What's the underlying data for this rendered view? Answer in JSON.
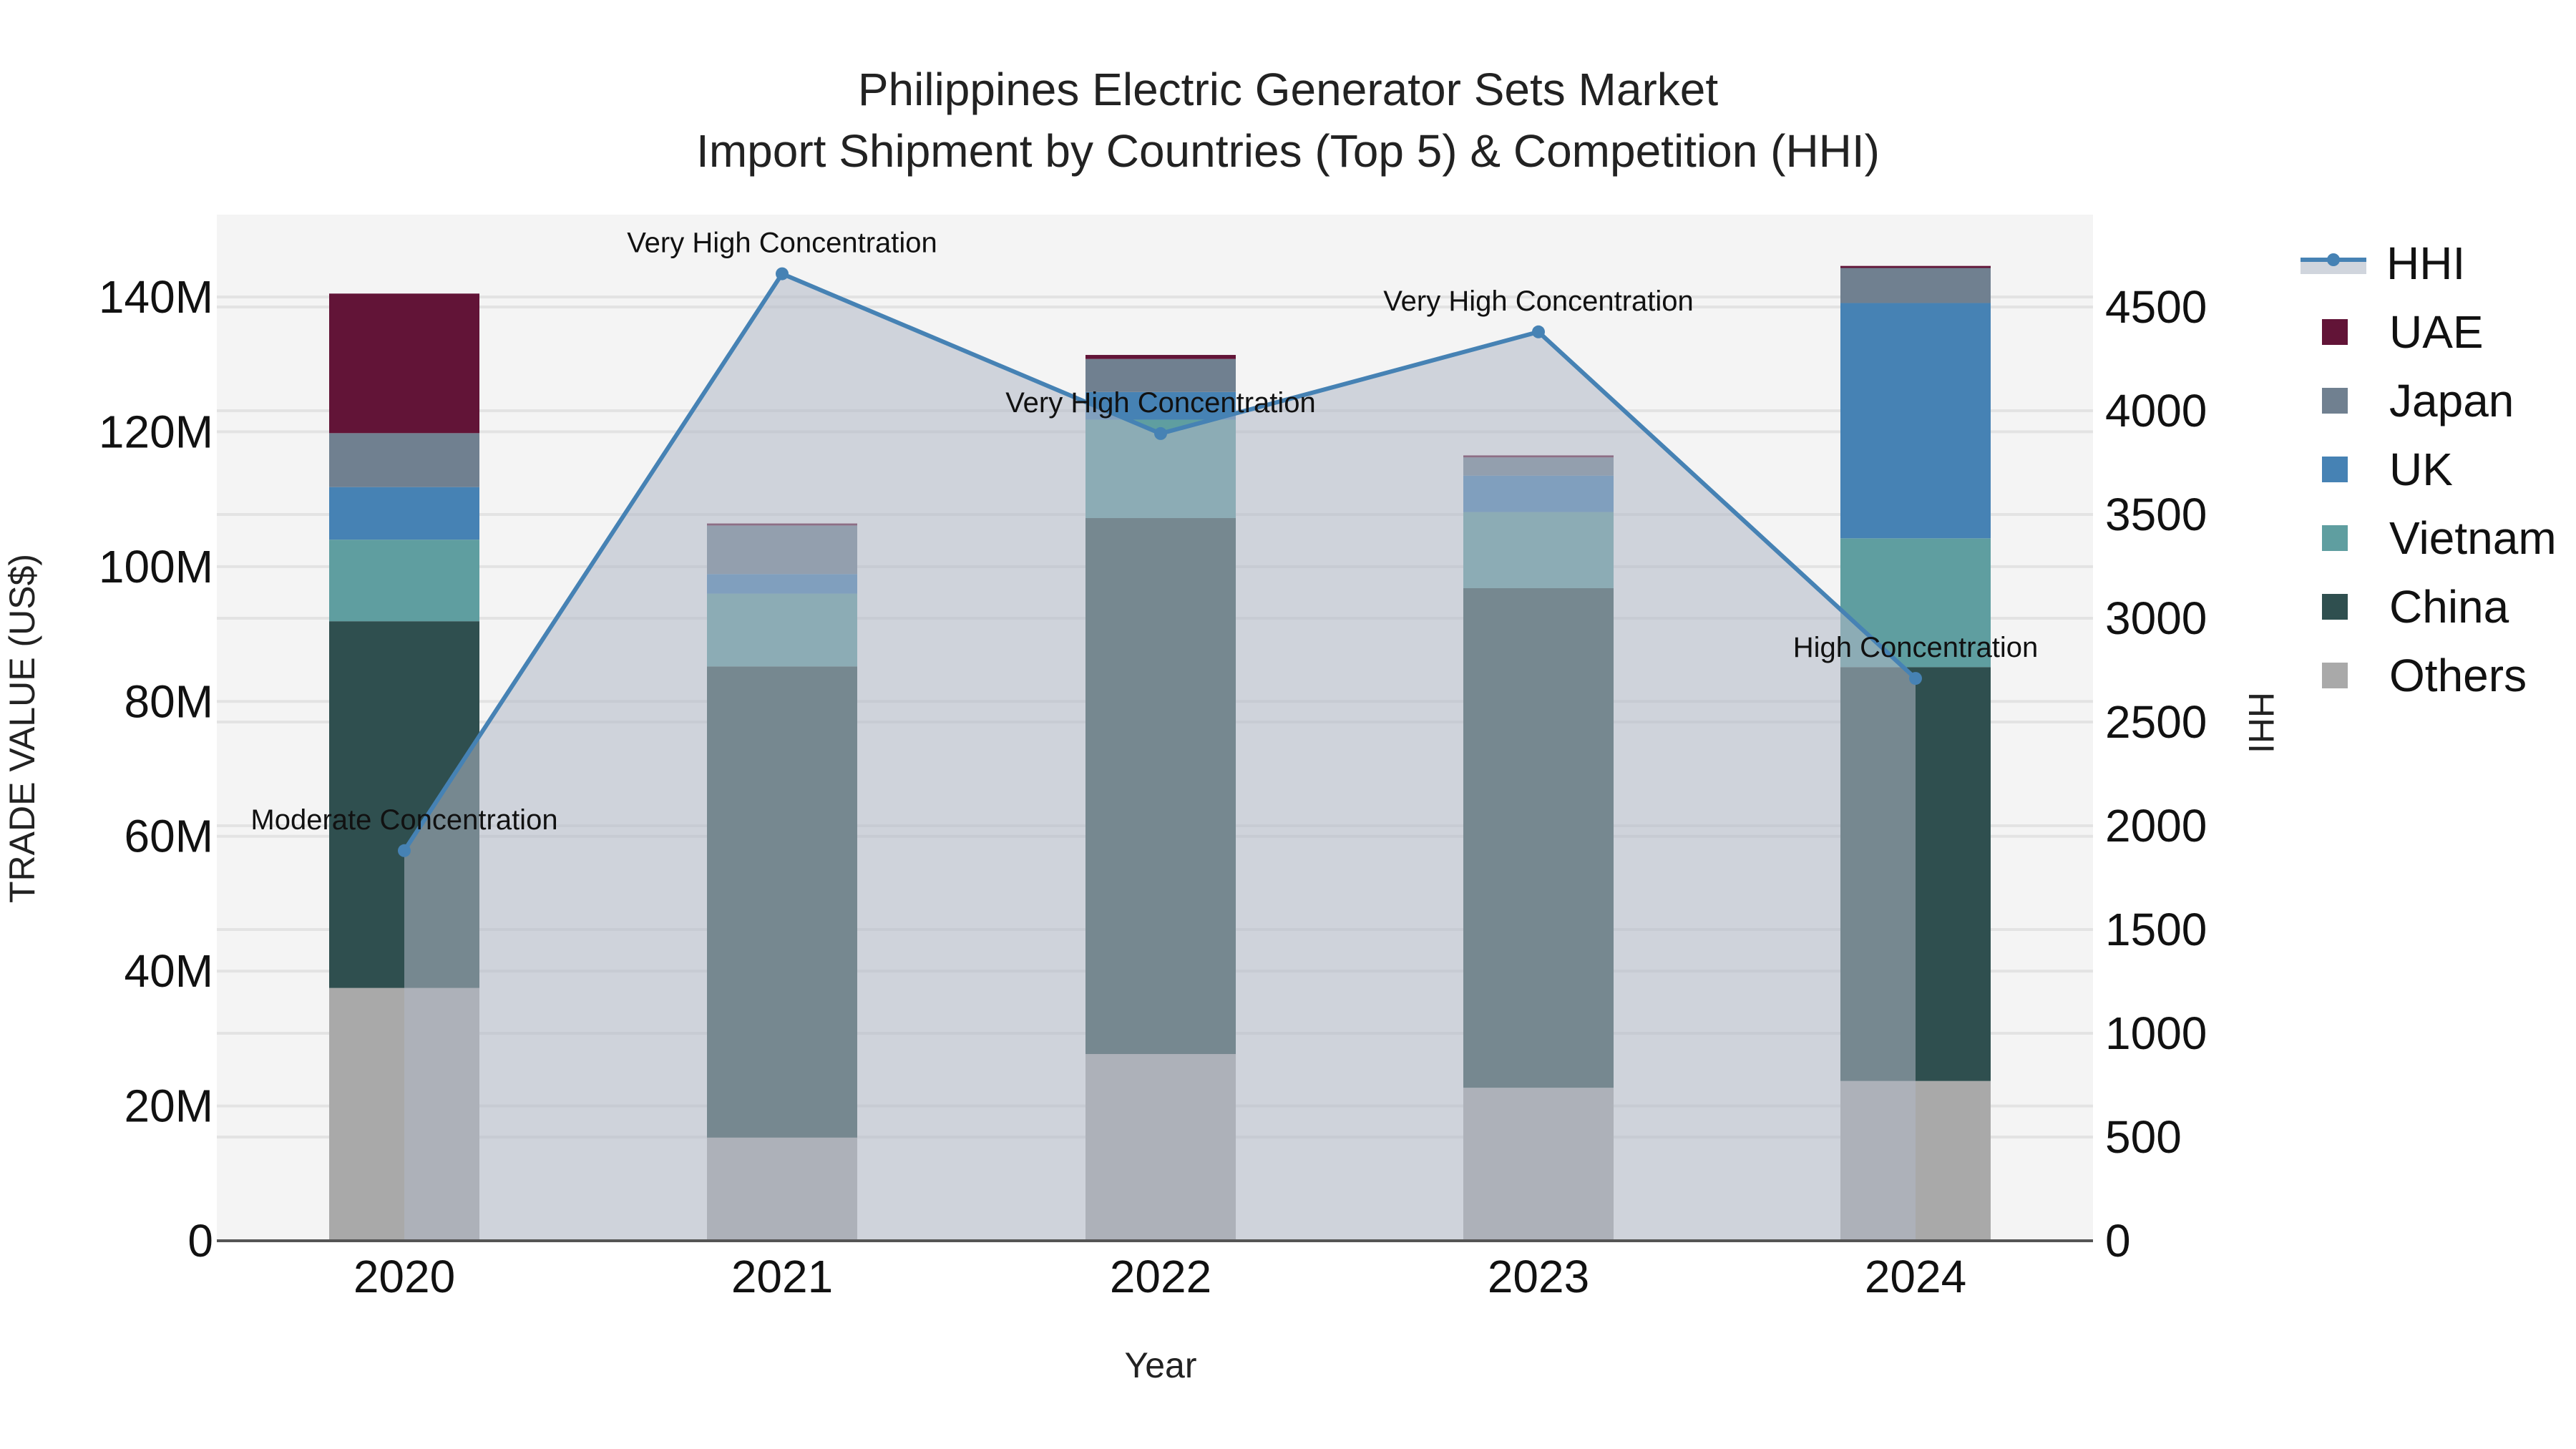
{
  "title": {
    "line1": "Philippines Electric Generator Sets Market",
    "line2": "Import Shipment by Countries (Top 5) & Competition (HHI)"
  },
  "axes": {
    "x_title": "Year",
    "y_left_title": "TRADE VALUE (US$)",
    "y_right_title": "HHI",
    "y_left_ticks": [
      "0",
      "20M",
      "40M",
      "60M",
      "80M",
      "100M",
      "120M",
      "140M"
    ],
    "y_right_ticks": [
      "0",
      "500",
      "1000",
      "1500",
      "2000",
      "2500",
      "3000",
      "3500",
      "4000",
      "4500"
    ]
  },
  "legend": [
    {
      "name": "HHI",
      "type": "line",
      "color": "#4682b4"
    },
    {
      "name": "UAE",
      "type": "bar",
      "color": "#621437"
    },
    {
      "name": "Japan",
      "type": "bar",
      "color": "#708090"
    },
    {
      "name": "UK",
      "type": "bar",
      "color": "#4682b4"
    },
    {
      "name": "Vietnam",
      "type": "bar",
      "color": "#5f9ea0"
    },
    {
      "name": "China",
      "type": "bar",
      "color": "#2f4f4f"
    },
    {
      "name": "Others",
      "type": "bar",
      "color": "#a9a9a9"
    }
  ],
  "colors": {
    "plot_bg": "#f4f4f4",
    "grid": "#e3e3e3",
    "hhi_line": "#4682b4",
    "hhi_fill": "rgba(176,184,198,0.55)"
  },
  "chart_data": {
    "type": "bar",
    "title": "Philippines Electric Generator Sets Market — Import Shipment by Countries (Top 5) & Competition (HHI)",
    "xlabel": "Year",
    "ylabel": "TRADE VALUE (US$)",
    "y2label": "HHI",
    "ylim": [
      0,
      152
    ],
    "y2lim": [
      0,
      4850
    ],
    "stacked": true,
    "grid": true,
    "legend_position": "right",
    "categories": [
      "2020",
      "2021",
      "2022",
      "2023",
      "2024"
    ],
    "units": "million US$",
    "series": [
      {
        "name": "Others",
        "color": "#a9a9a9",
        "values": [
          37.5,
          15.3,
          27.7,
          22.7,
          23.7
        ]
      },
      {
        "name": "China",
        "color": "#2f4f4f",
        "values": [
          54.4,
          69.9,
          79.5,
          74.1,
          61.4
        ]
      },
      {
        "name": "Vietnam",
        "color": "#5f9ea0",
        "values": [
          12.1,
          10.8,
          14.6,
          11.3,
          19.1
        ]
      },
      {
        "name": "UK",
        "color": "#4682b4",
        "values": [
          7.8,
          2.9,
          4.1,
          5.4,
          34.9
        ]
      },
      {
        "name": "Japan",
        "color": "#708090",
        "values": [
          8.0,
          7.2,
          4.9,
          2.7,
          5.2
        ]
      },
      {
        "name": "UAE",
        "color": "#621437",
        "values": [
          20.7,
          0.3,
          0.6,
          0.3,
          0.3
        ]
      }
    ],
    "line_series": {
      "name": "HHI",
      "axis": "right",
      "color": "#4682b4",
      "fill": "tozeroy",
      "values": [
        1880,
        4660,
        3890,
        4380,
        2710
      ]
    },
    "annotations": [
      {
        "x": "2020",
        "text": "Moderate Concentration"
      },
      {
        "x": "2021",
        "text": "Very High Concentration"
      },
      {
        "x": "2022",
        "text": "Very High Concentration"
      },
      {
        "x": "2023",
        "text": "Very High Concentration"
      },
      {
        "x": "2024",
        "text": "High Concentration"
      }
    ]
  }
}
